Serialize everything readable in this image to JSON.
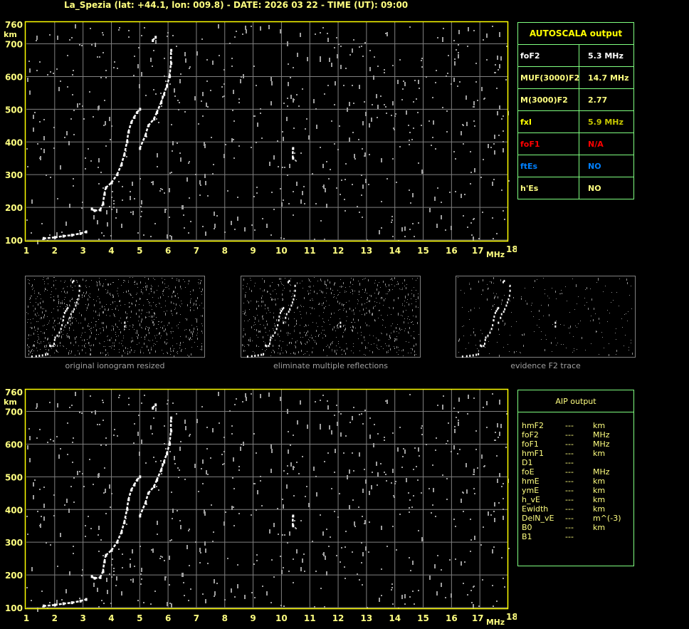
{
  "header": {
    "title": "La_Spezia (lat: +44.1, lon: 009.8) - DATE: 2026 03 22 - TIME (UT): 09:00"
  },
  "autoscala": {
    "title": "AUTOSCALA output",
    "rows": [
      {
        "label": "foF2",
        "value": "5.3 MHz",
        "color": "#ffffff"
      },
      {
        "label": "MUF(3000)F2",
        "value": "14.7 MHz",
        "color": "#ffff80"
      },
      {
        "label": "M(3000)F2",
        "value": "2.77",
        "color": "#ffff80"
      },
      {
        "label": "fxI",
        "value": "5.9 MHz",
        "color": "#c8c800",
        "label_color": "#ffff00"
      },
      {
        "label": "foF1",
        "value": "N/A",
        "color": "#ff0000"
      },
      {
        "label": "ftEs",
        "value": "NO",
        "color": "#0080ff"
      },
      {
        "label": "h'Es",
        "value": "NO",
        "color": "#ffff80"
      }
    ]
  },
  "aip": {
    "title": "AIP output",
    "rows": [
      {
        "name": "hmF2",
        "value": "---",
        "unit": "km"
      },
      {
        "name": "foF2",
        "value": "---",
        "unit": "MHz"
      },
      {
        "name": "foF1",
        "value": "---",
        "unit": "MHz"
      },
      {
        "name": "hmF1",
        "value": "---",
        "unit": "km"
      },
      {
        "name": "D1",
        "value": "---",
        "unit": ""
      },
      {
        "name": "foE",
        "value": "---",
        "unit": "MHz"
      },
      {
        "name": "hmE",
        "value": "---",
        "unit": "km"
      },
      {
        "name": "ymE",
        "value": "---",
        "unit": "km"
      },
      {
        "name": "h_vE",
        "value": "---",
        "unit": "km"
      },
      {
        "name": "Ewidth",
        "value": "---",
        "unit": "km"
      },
      {
        "name": "DelN_vE",
        "value": "---",
        "unit": "m^(-3)"
      },
      {
        "name": "B0",
        "value": "---",
        "unit": "km"
      },
      {
        "name": "B1",
        "value": "---",
        "unit": ""
      }
    ]
  },
  "thumbnails": [
    {
      "caption": "original ionogram resized"
    },
    {
      "caption": "eliminate multiple reflections"
    },
    {
      "caption": "evidence F2 trace"
    }
  ],
  "chart_data": {
    "type": "scatter",
    "title": "",
    "xlabel": "MHz",
    "ylabel": "km",
    "xlim": [
      1,
      18
    ],
    "ylim": [
      100,
      760
    ],
    "x_ticks": [
      "1",
      "2",
      "3",
      "4",
      "5",
      "6",
      "7",
      "8",
      "9",
      "10",
      "11",
      "12",
      "13",
      "14",
      "15",
      "16",
      "17",
      "18"
    ],
    "y_ticks": [
      "100",
      "200",
      "300",
      "400",
      "500",
      "600",
      "700",
      "760"
    ],
    "grid": true,
    "colors": {
      "axis": "#ffff00",
      "grid": "#808080",
      "trace": "#ffffff",
      "noise": "#a0a0a0",
      "panel_border": "#80ff80"
    },
    "series": [
      {
        "points": [
          [
            1.6,
            105
          ],
          [
            2.0,
            108
          ],
          [
            2.3,
            112
          ],
          [
            2.6,
            115
          ],
          [
            2.9,
            120
          ],
          [
            3.1,
            125
          ]
        ]
      },
      {
        "points": [
          [
            3.3,
            195
          ],
          [
            3.4,
            190
          ],
          [
            3.6,
            192
          ],
          [
            3.7,
            210
          ],
          [
            3.75,
            240
          ],
          [
            3.8,
            260
          ],
          [
            4.0,
            275
          ],
          [
            4.2,
            300
          ],
          [
            4.35,
            330
          ],
          [
            4.45,
            360
          ],
          [
            4.55,
            400
          ],
          [
            4.6,
            430
          ],
          [
            4.7,
            460
          ],
          [
            4.8,
            475
          ],
          [
            4.9,
            490
          ],
          [
            5.0,
            500
          ]
        ]
      },
      {
        "points": [
          [
            5.0,
            380
          ],
          [
            5.2,
            420
          ],
          [
            5.3,
            450
          ],
          [
            5.5,
            470
          ],
          [
            5.6,
            490
          ],
          [
            5.75,
            520
          ],
          [
            5.85,
            545
          ],
          [
            5.95,
            570
          ],
          [
            6.05,
            600
          ],
          [
            6.1,
            640
          ],
          [
            6.1,
            680
          ]
        ]
      },
      {
        "points": [
          [
            5.45,
            710
          ],
          [
            5.55,
            720
          ],
          [
            10.4,
            350
          ],
          [
            10.4,
            380
          ]
        ]
      }
    ]
  }
}
